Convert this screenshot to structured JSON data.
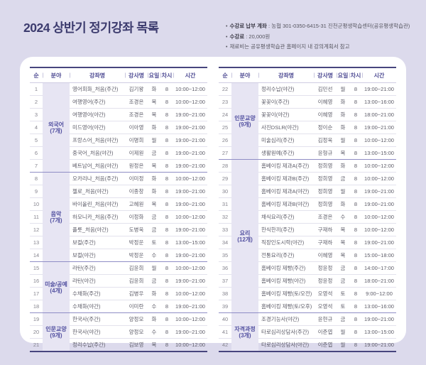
{
  "page": {
    "title": "2024 상반기 정기강좌 목록",
    "bullet": "•",
    "notes": [
      {
        "label": "수강료 납부 계좌",
        "sep": " : ",
        "value": "농협 301-0350-6415-31 진천군평생학습센터(공유평생학습관)"
      },
      {
        "label": "수강료",
        "sep": " : ",
        "value": "20,000원"
      },
      {
        "label": "",
        "sep": "",
        "value": "재료비는 공유평생학습관 홈페이지 내 강의계획서 참고"
      }
    ]
  },
  "table": {
    "headers": [
      "순",
      "분야",
      "강좌명",
      "강사명",
      "요일",
      "차시",
      "시간"
    ],
    "column_names": [
      "no",
      "category",
      "course",
      "instructor",
      "day",
      "sessions",
      "time"
    ],
    "panels": [
      {
        "rows": [
          {
            "no": "1",
            "category": "외국어",
            "category_count": "(7개)",
            "category_span": 7,
            "course": "영어회화_처음(주간)",
            "instructor": "김기왕",
            "day": "화",
            "sessions": "8",
            "time": "10:00~12:00"
          },
          {
            "no": "2",
            "course": "여행영어(주간)",
            "instructor": "조경은",
            "day": "목",
            "sessions": "8",
            "time": "10:00~12:00"
          },
          {
            "no": "3",
            "course": "여행영어(야간)",
            "instructor": "조경은",
            "day": "목",
            "sessions": "8",
            "time": "19:00~21:00"
          },
          {
            "no": "4",
            "course": "미드영어(야간)",
            "instructor": "이아영",
            "day": "화",
            "sessions": "8",
            "time": "19:00~21:00"
          },
          {
            "no": "5",
            "course": "프랑스어_처음(야간)",
            "instructor": "이명희",
            "day": "월",
            "sessions": "8",
            "time": "19:00~21:00"
          },
          {
            "no": "6",
            "course": "중국어_처음(야간)",
            "instructor": "이제원",
            "day": "금",
            "sessions": "8",
            "time": "19:00~21:00"
          },
          {
            "no": "7",
            "course": "베트남어_처음(야간)",
            "instructor": "원정은",
            "day": "목",
            "sessions": "8",
            "time": "19:00~21:00"
          },
          {
            "no": "8",
            "category": "음악",
            "category_count": "(7개)",
            "category_span": 7,
            "course": "오카리나_처음(주간)",
            "instructor": "이미정",
            "day": "화",
            "sessions": "8",
            "time": "10:00~12:00"
          },
          {
            "no": "9",
            "course": "첼로_처음(야간)",
            "instructor": "이종창",
            "day": "화",
            "sessions": "8",
            "time": "19:00~21:00"
          },
          {
            "no": "10",
            "course": "바이올린_처음(야간)",
            "instructor": "고혜원",
            "day": "목",
            "sessions": "8",
            "time": "19:00~21:00"
          },
          {
            "no": "11",
            "course": "하모니카_처음(주간)",
            "instructor": "이정화",
            "day": "금",
            "sessions": "8",
            "time": "10:00~12:00"
          },
          {
            "no": "12",
            "course": "플룻_처음(야간)",
            "instructor": "도병욱",
            "day": "금",
            "sessions": "8",
            "time": "19:00~21:00"
          },
          {
            "no": "13",
            "course": "보컬(주간)",
            "instructor": "박정운",
            "day": "토",
            "sessions": "8",
            "time": "13:00~15:00"
          },
          {
            "no": "14",
            "course": "보컬(야간)",
            "instructor": "박정운",
            "day": "수",
            "sessions": "8",
            "time": "19:00~21:00"
          },
          {
            "no": "15",
            "category": "미술/공예",
            "category_count": "(4개)",
            "category_span": 4,
            "course": "라탄(주간)",
            "instructor": "김윤희",
            "day": "월",
            "sessions": "8",
            "time": "10:00~12:00"
          },
          {
            "no": "16",
            "course": "라탄(야간)",
            "instructor": "김윤희",
            "day": "금",
            "sessions": "8",
            "time": "19:00~21:00"
          },
          {
            "no": "17",
            "course": "수채화(주간)",
            "instructor": "김병우",
            "day": "화",
            "sessions": "8",
            "time": "10:00~12:00"
          },
          {
            "no": "18",
            "course": "수채화(야간)",
            "instructor": "이미란",
            "day": "수",
            "sessions": "8",
            "time": "19:00~21:00"
          },
          {
            "no": "19",
            "category": "인문교양",
            "category_count": "(9개)",
            "category_span": 3,
            "course": "한국사(주간)",
            "instructor": "양정모",
            "day": "화",
            "sessions": "8",
            "time": "10:00~12:00"
          },
          {
            "no": "20",
            "course": "한국사(야간)",
            "instructor": "양정모",
            "day": "수",
            "sessions": "8",
            "time": "19:00~21:00"
          },
          {
            "no": "21",
            "course": "정리수납(주간)",
            "instructor": "김보영",
            "day": "목",
            "sessions": "8",
            "time": "10:00~12:00"
          }
        ]
      },
      {
        "rows": [
          {
            "no": "22",
            "category": "인문교양",
            "category_count": "(9개)",
            "category_span": 6,
            "course": "정리수납(야간)",
            "instructor": "김민선",
            "day": "월",
            "sessions": "8",
            "time": "19:00~21:00"
          },
          {
            "no": "23",
            "course": "꽃꽂이(주간)",
            "instructor": "이혜영",
            "day": "화",
            "sessions": "8",
            "time": "13:00~16:00"
          },
          {
            "no": "24",
            "course": "꽃꽂이(야간)",
            "instructor": "이혜영",
            "day": "화",
            "sessions": "8",
            "time": "18:00~21:00"
          },
          {
            "no": "25",
            "course": "사진DSLR(야간)",
            "instructor": "정이순",
            "day": "화",
            "sessions": "8",
            "time": "19:00~21:00"
          },
          {
            "no": "26",
            "course": "미술심리(주간)",
            "instructor": "김정욱",
            "day": "월",
            "sessions": "8",
            "time": "10:00~12:00"
          },
          {
            "no": "27",
            "course": "생활원예(주간)",
            "instructor": "윤형규",
            "day": "목",
            "sessions": "8",
            "time": "13:00~15:00"
          },
          {
            "no": "28",
            "category": "요리",
            "category_count": "(12개)",
            "category_span": 12,
            "course": "홈베이킹 제과A(주간)",
            "instructor": "정희영",
            "day": "화",
            "sessions": "8",
            "time": "10:00~12:00"
          },
          {
            "no": "29",
            "course": "홈베이킹 제과B(주간)",
            "instructor": "정희영",
            "day": "금",
            "sessions": "8",
            "time": "10:00~12:00"
          },
          {
            "no": "30",
            "course": "홈베이킹 제과A(야간)",
            "instructor": "정희영",
            "day": "월",
            "sessions": "8",
            "time": "19:00~21:00"
          },
          {
            "no": "31",
            "course": "홈베이킹 제과B(야간)",
            "instructor": "정희영",
            "day": "화",
            "sessions": "8",
            "time": "19:00~21:00"
          },
          {
            "no": "32",
            "course": "채식요리(주간)",
            "instructor": "조경은",
            "day": "수",
            "sessions": "8",
            "time": "10:00~12:00"
          },
          {
            "no": "33",
            "course": "한식한끼(주간)",
            "instructor": "구재하",
            "day": "목",
            "sessions": "8",
            "time": "10:00~12:00"
          },
          {
            "no": "34",
            "course": "직장인도시락(야간)",
            "instructor": "구재하",
            "day": "목",
            "sessions": "8",
            "time": "19:00~21:00"
          },
          {
            "no": "35",
            "course": "전통요리(주간)",
            "instructor": "이혜영",
            "day": "목",
            "sessions": "8",
            "time": "15:00~18:00"
          },
          {
            "no": "36",
            "course": "홈베이킹 제빵(주간)",
            "instructor": "정윤정",
            "day": "금",
            "sessions": "8",
            "time": "14:00~17:00"
          },
          {
            "no": "37",
            "course": "홈베이킹 제빵(야간)",
            "instructor": "정윤정",
            "day": "금",
            "sessions": "8",
            "time": "18:00~21:00"
          },
          {
            "no": "38",
            "course": "홈베이킹 제빵(토/오전)",
            "instructor": "오영석",
            "day": "토",
            "sessions": "8",
            "time": "9:00~12:00"
          },
          {
            "no": "39",
            "course": "홈베이킹 제빵(토/오후)",
            "instructor": "오영석",
            "day": "토",
            "sessions": "8",
            "time": "13:00~16:00"
          },
          {
            "no": "40",
            "category": "자격과정",
            "category_count": "(3개)",
            "category_span": 3,
            "course": "조경기능사(야간)",
            "instructor": "윤현규",
            "day": "금",
            "sessions": "8",
            "time": "19:00~21:00"
          },
          {
            "no": "41",
            "course": "타로심리상담사(주간)",
            "instructor": "이준엽",
            "day": "월",
            "sessions": "8",
            "time": "13:00~15:00"
          },
          {
            "no": "42",
            "course": "타로심리상담사(야간)",
            "instructor": "이준엽",
            "day": "월",
            "sessions": "8",
            "time": "19:00~21:00"
          }
        ]
      }
    ]
  },
  "colors": {
    "page_bg": "#dcdaec",
    "card_bg": "#ffffff",
    "title_text": "#3c3b6e",
    "header_text": "#4e4b93",
    "accent_border": "#47457e",
    "category_bg": "#e7e5f3",
    "category_text": "#5250a0",
    "row_text": "#5d5c68",
    "group_divider": "#8f8dc5",
    "row_divider": "#e3e2ed"
  }
}
